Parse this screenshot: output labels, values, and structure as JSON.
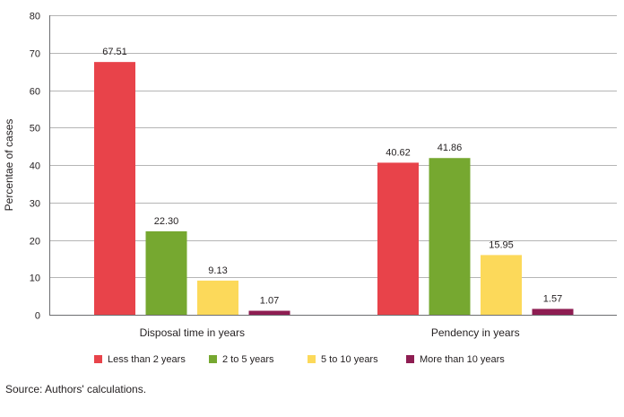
{
  "chart_data": {
    "type": "bar",
    "categories": [
      "Disposal time in years",
      "Pendency in years"
    ],
    "series": [
      {
        "name": "Less than 2 years",
        "values": [
          67.51,
          40.62
        ],
        "labels": [
          "67.51",
          "40.62"
        ],
        "color": "#e8434a"
      },
      {
        "name": "2 to 5 years",
        "values": [
          22.3,
          41.86
        ],
        "labels": [
          "22.30",
          "41.86"
        ],
        "color": "#76a830"
      },
      {
        "name": "5 to 10 years",
        "values": [
          9.13,
          15.95
        ],
        "labels": [
          "9.13",
          "15.95"
        ],
        "color": "#fcd95a"
      },
      {
        "name": "More than 10  years",
        "values": [
          1.07,
          1.57
        ],
        "labels": [
          "1.07",
          "1.57"
        ],
        "color": "#8e1d52"
      }
    ],
    "ylabel": "Percentae of cases",
    "ylim": [
      0,
      80
    ],
    "yticks": [
      0,
      10,
      20,
      30,
      40,
      50,
      60,
      70,
      80
    ],
    "grid": true,
    "legend_position": "bottom"
  },
  "source": "Source: Authors' calculations."
}
